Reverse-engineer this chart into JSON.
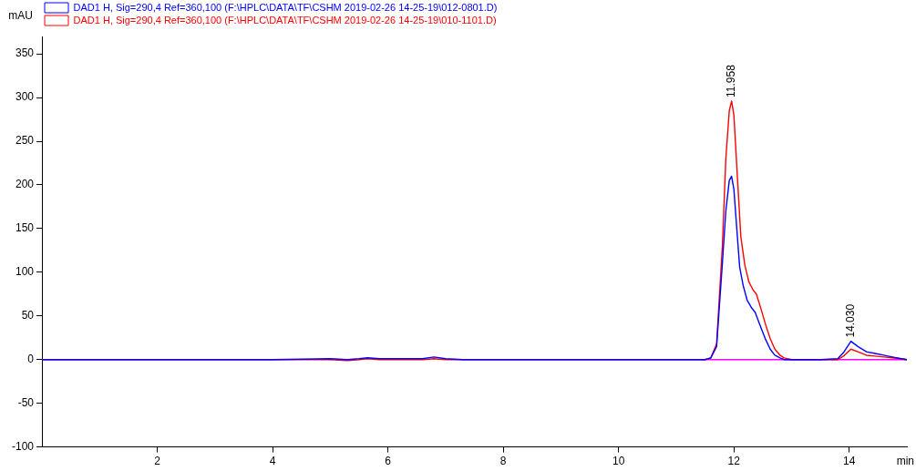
{
  "chart_data": {
    "type": "line",
    "xlabel": "min",
    "ylabel": "mAU",
    "xlim": [
      0,
      15
    ],
    "ylim": [
      -100,
      370
    ],
    "xticks": [
      2,
      4,
      6,
      8,
      10,
      12,
      14
    ],
    "yticks": [
      -100,
      -50,
      0,
      50,
      100,
      150,
      200,
      250,
      300,
      350
    ],
    "grid": false,
    "legend": "top left",
    "marker": "none",
    "line_style": "solid",
    "annotations": [
      {
        "text": "11.958",
        "x": 11.958,
        "y": 296
      },
      {
        "text": "14.030",
        "x": 14.03,
        "y": 21
      }
    ],
    "series": [
      {
        "name": "DAD1 H, Sig=290,4 Ref=360,100 (F:\\HPLC\\DATA\\TF\\CSHM 2019-02-26 14-25-19\\012-0801.D)",
        "color": "#0000ff",
        "x": [
          0,
          2,
          4,
          5.0,
          5.3,
          5.5,
          5.65,
          5.85,
          6.2,
          6.6,
          6.8,
          7.0,
          7.3,
          8,
          9,
          10,
          11,
          11.5,
          11.6,
          11.7,
          11.8,
          11.86,
          11.92,
          11.96,
          12.0,
          12.05,
          12.1,
          12.16,
          12.23,
          12.3,
          12.37,
          12.45,
          12.55,
          12.63,
          12.71,
          12.8,
          12.87,
          13.0,
          13.5,
          13.8,
          13.9,
          14.03,
          14.15,
          14.3,
          14.45,
          14.6,
          14.75,
          14.9,
          15
        ],
        "values": [
          0,
          0,
          0,
          1,
          0,
          1,
          2,
          1,
          1,
          1,
          3,
          1,
          0,
          0,
          0,
          0,
          0,
          0,
          2,
          15,
          110,
          170,
          205,
          210,
          195,
          150,
          106,
          85,
          68,
          60,
          54,
          40,
          23,
          12,
          5,
          2,
          0,
          0,
          0,
          1,
          8,
          21,
          15,
          9,
          7,
          5,
          3,
          1,
          0
        ]
      },
      {
        "name": "DAD1 H, Sig=290,4 Ref=360,100 (F:\\HPLC\\DATA\\TF\\CSHM 2019-02-26 14-25-19\\010-1101.D)",
        "color": "#ff0000",
        "x": [
          0,
          2,
          4,
          5.0,
          5.3,
          5.5,
          5.65,
          5.85,
          6.2,
          6.6,
          6.8,
          7.0,
          7.3,
          8,
          9,
          10,
          11,
          11.5,
          11.6,
          11.7,
          11.8,
          11.86,
          11.92,
          11.96,
          12.0,
          12.06,
          12.12,
          12.19,
          12.26,
          12.33,
          12.39,
          12.47,
          12.55,
          12.63,
          12.71,
          12.8,
          12.87,
          13.0,
          13.5,
          13.8,
          13.9,
          14.03,
          14.15,
          14.3,
          14.45,
          14.6,
          14.75,
          14.9,
          15
        ],
        "values": [
          0,
          0,
          0,
          0,
          -1,
          0,
          1,
          0,
          0,
          0,
          1,
          0,
          0,
          0,
          0,
          0,
          0,
          0,
          2,
          18,
          130,
          230,
          285,
          296,
          280,
          210,
          141,
          108,
          89,
          80,
          75,
          58,
          40,
          24,
          12,
          5,
          2,
          0,
          0,
          0,
          4,
          12,
          9,
          5,
          4,
          3,
          2,
          1,
          0
        ]
      },
      {
        "color": "#ff00ff",
        "x": [
          11.44,
          15
        ],
        "values": [
          0,
          0
        ]
      }
    ]
  }
}
